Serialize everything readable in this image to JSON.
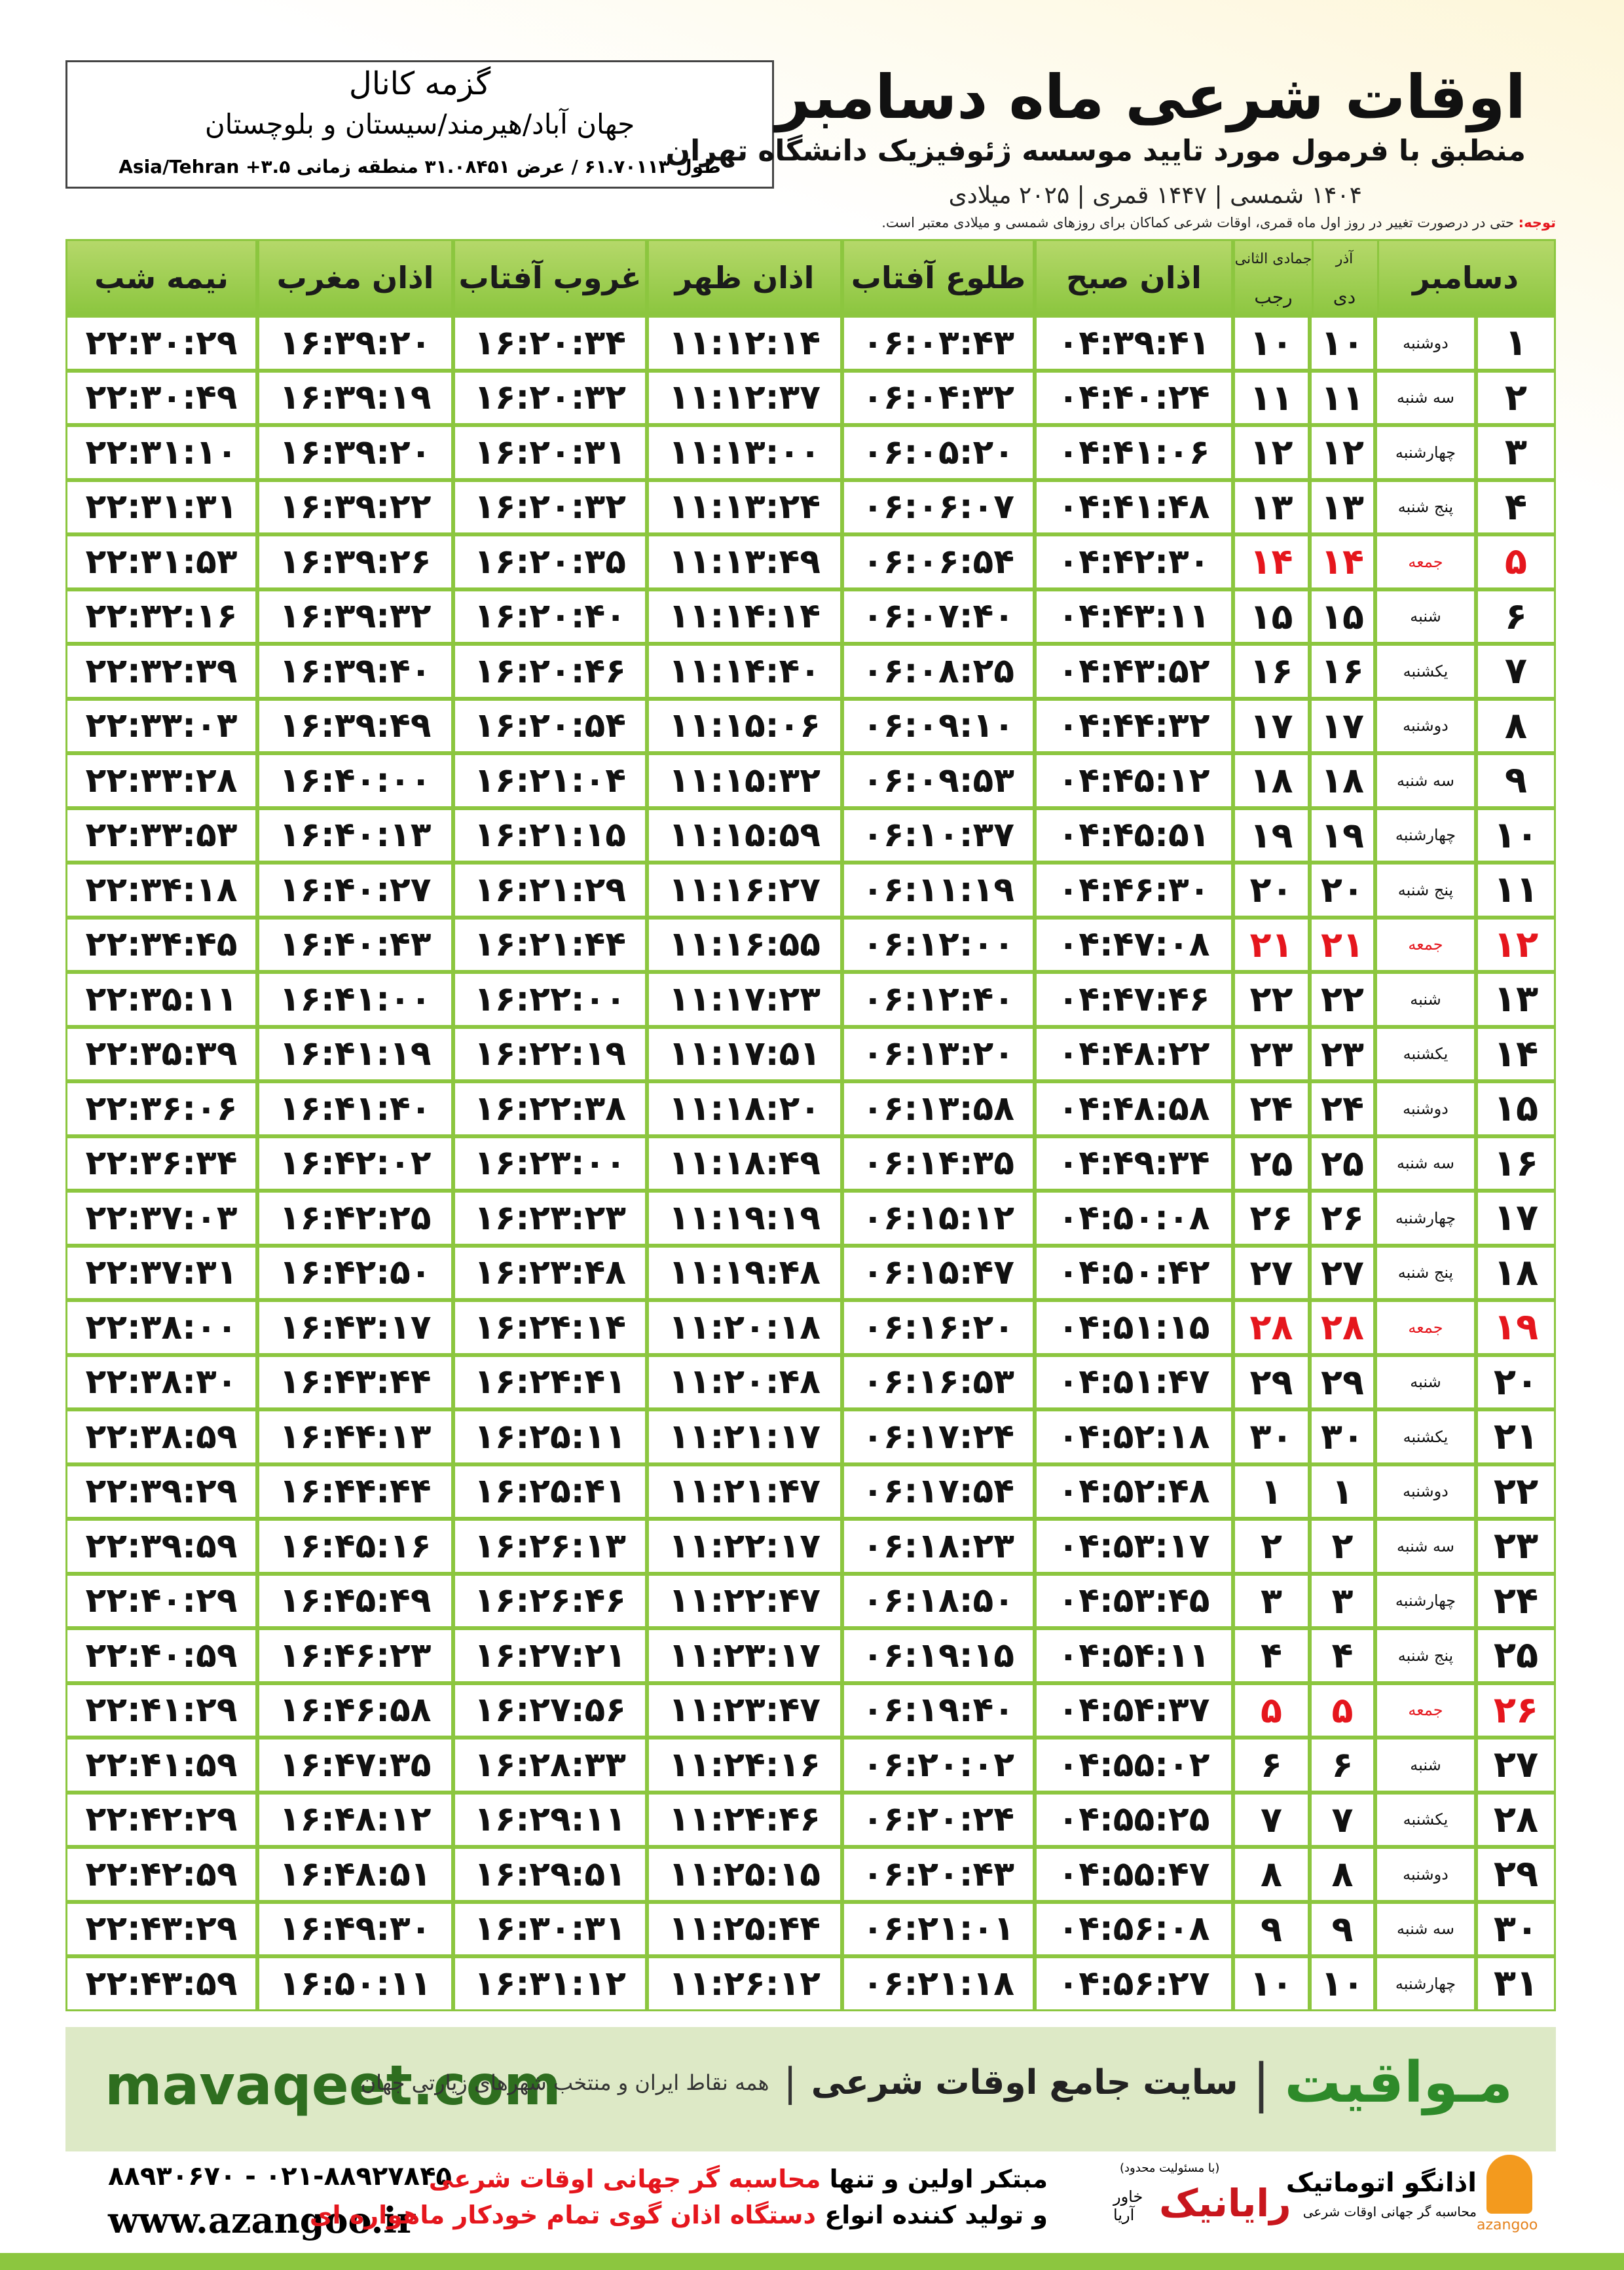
{
  "header": {
    "title": "اوقات شرعی ماه دسامبر",
    "subtitle": "منطبق با فرمول مورد تایید موسسه ژئوفیزیک دانشگاه تهران",
    "dates": "۱۴۰۴ شمسی | ۱۴۴۷ قمری | ۲۰۲۵ میلادی"
  },
  "location": {
    "name": "گزمه کانال",
    "region": "جهان آباد/هیرمند/سیستان و بلوچستان",
    "coords": "طول ۶۱.۷۰۱۱۳ / عرض ۳۱.۰۸۴۵۱ منطقه زمانی ۳.۵+ Asia/Tehran"
  },
  "note": {
    "label": "توجه:",
    "text": "حتی در درصورت تغییر در روز اول ماه قمری، اوقات شرعی کماکان برای روزهای شمسی و میلادی معتبر است."
  },
  "table": {
    "headers": {
      "month": "دسامبر",
      "solar": [
        "آذر",
        "دی"
      ],
      "lunar": [
        "جمادی الثانی",
        "رجب"
      ],
      "times": [
        "اذان صبح",
        "طلوع آفتاب",
        "اذان ظهر",
        "غروب آفتاب",
        "اذان مغرب",
        "نیمه شب"
      ]
    },
    "rows": [
      {
        "cells": [
          "۱",
          "دوشنبه",
          "۱۰",
          "۱۰",
          "۰۴:۳۹:۴۱",
          "۰۶:۰۳:۴۳",
          "۱۱:۱۲:۱۴",
          "۱۶:۲۰:۳۴",
          "۱۶:۳۹:۲۰",
          "۲۲:۳۰:۲۹"
        ]
      },
      {
        "cells": [
          "۲",
          "سه شنبه",
          "۱۱",
          "۱۱",
          "۰۴:۴۰:۲۴",
          "۰۶:۰۴:۳۲",
          "۱۱:۱۲:۳۷",
          "۱۶:۲۰:۳۲",
          "۱۶:۳۹:۱۹",
          "۲۲:۳۰:۴۹"
        ]
      },
      {
        "cells": [
          "۳",
          "چهارشنبه",
          "۱۲",
          "۱۲",
          "۰۴:۴۱:۰۶",
          "۰۶:۰۵:۲۰",
          "۱۱:۱۳:۰۰",
          "۱۶:۲۰:۳۱",
          "۱۶:۳۹:۲۰",
          "۲۲:۳۱:۱۰"
        ]
      },
      {
        "cells": [
          "۴",
          "پنج شنبه",
          "۱۳",
          "۱۳",
          "۰۴:۴۱:۴۸",
          "۰۶:۰۶:۰۷",
          "۱۱:۱۳:۲۴",
          "۱۶:۲۰:۳۲",
          "۱۶:۳۹:۲۲",
          "۲۲:۳۱:۳۱"
        ]
      },
      {
        "cells": [
          "۵",
          "جمعه",
          "۱۴",
          "۱۴",
          "۰۴:۴۲:۳۰",
          "۰۶:۰۶:۵۴",
          "۱۱:۱۳:۴۹",
          "۱۶:۲۰:۳۵",
          "۱۶:۳۹:۲۶",
          "۲۲:۳۱:۵۳"
        ],
        "color": "#e5161d"
      },
      {
        "cells": [
          "۶",
          "شنبه",
          "۱۵",
          "۱۵",
          "۰۴:۴۳:۱۱",
          "۰۶:۰۷:۴۰",
          "۱۱:۱۴:۱۴",
          "۱۶:۲۰:۴۰",
          "۱۶:۳۹:۳۲",
          "۲۲:۳۲:۱۶"
        ]
      },
      {
        "cells": [
          "۷",
          "یکشنبه",
          "۱۶",
          "۱۶",
          "۰۴:۴۳:۵۲",
          "۰۶:۰۸:۲۵",
          "۱۱:۱۴:۴۰",
          "۱۶:۲۰:۴۶",
          "۱۶:۳۹:۴۰",
          "۲۲:۳۲:۳۹"
        ]
      },
      {
        "cells": [
          "۸",
          "دوشنبه",
          "۱۷",
          "۱۷",
          "۰۴:۴۴:۳۲",
          "۰۶:۰۹:۱۰",
          "۱۱:۱۵:۰۶",
          "۱۶:۲۰:۵۴",
          "۱۶:۳۹:۴۹",
          "۲۲:۳۳:۰۳"
        ]
      },
      {
        "cells": [
          "۹",
          "سه شنبه",
          "۱۸",
          "۱۸",
          "۰۴:۴۵:۱۲",
          "۰۶:۰۹:۵۳",
          "۱۱:۱۵:۳۲",
          "۱۶:۲۱:۰۴",
          "۱۶:۴۰:۰۰",
          "۲۲:۳۳:۲۸"
        ]
      },
      {
        "cells": [
          "۱۰",
          "چهارشنبه",
          "۱۹",
          "۱۹",
          "۰۴:۴۵:۵۱",
          "۰۶:۱۰:۳۷",
          "۱۱:۱۵:۵۹",
          "۱۶:۲۱:۱۵",
          "۱۶:۴۰:۱۳",
          "۲۲:۳۳:۵۳"
        ]
      },
      {
        "cells": [
          "۱۱",
          "پنج شنبه",
          "۲۰",
          "۲۰",
          "۰۴:۴۶:۳۰",
          "۰۶:۱۱:۱۹",
          "۱۱:۱۶:۲۷",
          "۱۶:۲۱:۲۹",
          "۱۶:۴۰:۲۷",
          "۲۲:۳۴:۱۸"
        ]
      },
      {
        "cells": [
          "۱۲",
          "جمعه",
          "۲۱",
          "۲۱",
          "۰۴:۴۷:۰۸",
          "۰۶:۱۲:۰۰",
          "۱۱:۱۶:۵۵",
          "۱۶:۲۱:۴۴",
          "۱۶:۴۰:۴۳",
          "۲۲:۳۴:۴۵"
        ],
        "color": "#e5161d"
      },
      {
        "cells": [
          "۱۳",
          "شنبه",
          "۲۲",
          "۲۲",
          "۰۴:۴۷:۴۶",
          "۰۶:۱۲:۴۰",
          "۱۱:۱۷:۲۳",
          "۱۶:۲۲:۰۰",
          "۱۶:۴۱:۰۰",
          "۲۲:۳۵:۱۱"
        ]
      },
      {
        "cells": [
          "۱۴",
          "یکشنبه",
          "۲۳",
          "۲۳",
          "۰۴:۴۸:۲۲",
          "۰۶:۱۳:۲۰",
          "۱۱:۱۷:۵۱",
          "۱۶:۲۲:۱۹",
          "۱۶:۴۱:۱۹",
          "۲۲:۳۵:۳۹"
        ]
      },
      {
        "cells": [
          "۱۵",
          "دوشنبه",
          "۲۴",
          "۲۴",
          "۰۴:۴۸:۵۸",
          "۰۶:۱۳:۵۸",
          "۱۱:۱۸:۲۰",
          "۱۶:۲۲:۳۸",
          "۱۶:۴۱:۴۰",
          "۲۲:۳۶:۰۶"
        ]
      },
      {
        "cells": [
          "۱۶",
          "سه شنبه",
          "۲۵",
          "۲۵",
          "۰۴:۴۹:۳۴",
          "۰۶:۱۴:۳۵",
          "۱۱:۱۸:۴۹",
          "۱۶:۲۳:۰۰",
          "۱۶:۴۲:۰۲",
          "۲۲:۳۶:۳۴"
        ]
      },
      {
        "cells": [
          "۱۷",
          "چهارشنبه",
          "۲۶",
          "۲۶",
          "۰۴:۵۰:۰۸",
          "۰۶:۱۵:۱۲",
          "۱۱:۱۹:۱۹",
          "۱۶:۲۳:۲۳",
          "۱۶:۴۲:۲۵",
          "۲۲:۳۷:۰۳"
        ]
      },
      {
        "cells": [
          "۱۸",
          "پنج شنبه",
          "۲۷",
          "۲۷",
          "۰۴:۵۰:۴۲",
          "۰۶:۱۵:۴۷",
          "۱۱:۱۹:۴۸",
          "۱۶:۲۳:۴۸",
          "۱۶:۴۲:۵۰",
          "۲۲:۳۷:۳۱"
        ]
      },
      {
        "cells": [
          "۱۹",
          "جمعه",
          "۲۸",
          "۲۸",
          "۰۴:۵۱:۱۵",
          "۰۶:۱۶:۲۰",
          "۱۱:۲۰:۱۸",
          "۱۶:۲۴:۱۴",
          "۱۶:۴۳:۱۷",
          "۲۲:۳۸:۰۰"
        ],
        "color": "#e5161d"
      },
      {
        "cells": [
          "۲۰",
          "شنبه",
          "۲۹",
          "۲۹",
          "۰۴:۵۱:۴۷",
          "۰۶:۱۶:۵۳",
          "۱۱:۲۰:۴۸",
          "۱۶:۲۴:۴۱",
          "۱۶:۴۳:۴۴",
          "۲۲:۳۸:۳۰"
        ]
      },
      {
        "cells": [
          "۲۱",
          "یکشنبه",
          "۳۰",
          "۳۰",
          "۰۴:۵۲:۱۸",
          "۰۶:۱۷:۲۴",
          "۱۱:۲۱:۱۷",
          "۱۶:۲۵:۱۱",
          "۱۶:۴۴:۱۳",
          "۲۲:۳۸:۵۹"
        ]
      },
      {
        "cells": [
          "۲۲",
          "دوشنبه",
          "۱",
          "۱",
          "۰۴:۵۲:۴۸",
          "۰۶:۱۷:۵۴",
          "۱۱:۲۱:۴۷",
          "۱۶:۲۵:۴۱",
          "۱۶:۴۴:۴۴",
          "۲۲:۳۹:۲۹"
        ]
      },
      {
        "cells": [
          "۲۳",
          "سه شنبه",
          "۲",
          "۲",
          "۰۴:۵۳:۱۷",
          "۰۶:۱۸:۲۳",
          "۱۱:۲۲:۱۷",
          "۱۶:۲۶:۱۳",
          "۱۶:۴۵:۱۶",
          "۲۲:۳۹:۵۹"
        ]
      },
      {
        "cells": [
          "۲۴",
          "چهارشنبه",
          "۳",
          "۳",
          "۰۴:۵۳:۴۵",
          "۰۶:۱۸:۵۰",
          "۱۱:۲۲:۴۷",
          "۱۶:۲۶:۴۶",
          "۱۶:۴۵:۴۹",
          "۲۲:۴۰:۲۹"
        ]
      },
      {
        "cells": [
          "۲۵",
          "پنج شنبه",
          "۴",
          "۴",
          "۰۴:۵۴:۱۱",
          "۰۶:۱۹:۱۵",
          "۱۱:۲۳:۱۷",
          "۱۶:۲۷:۲۱",
          "۱۶:۴۶:۲۳",
          "۲۲:۴۰:۵۹"
        ]
      },
      {
        "cells": [
          "۲۶",
          "جمعه",
          "۵",
          "۵",
          "۰۴:۵۴:۳۷",
          "۰۶:۱۹:۴۰",
          "۱۱:۲۳:۴۷",
          "۱۶:۲۷:۵۶",
          "۱۶:۴۶:۵۸",
          "۲۲:۴۱:۲۹"
        ],
        "color": "#e5161d"
      },
      {
        "cells": [
          "۲۷",
          "شنبه",
          "۶",
          "۶",
          "۰۴:۵۵:۰۲",
          "۰۶:۲۰:۰۲",
          "۱۱:۲۴:۱۶",
          "۱۶:۲۸:۳۳",
          "۱۶:۴۷:۳۵",
          "۲۲:۴۱:۵۹"
        ]
      },
      {
        "cells": [
          "۲۸",
          "یکشنبه",
          "۷",
          "۷",
          "۰۴:۵۵:۲۵",
          "۰۶:۲۰:۲۴",
          "۱۱:۲۴:۴۶",
          "۱۶:۲۹:۱۱",
          "۱۶:۴۸:۱۲",
          "۲۲:۴۲:۲۹"
        ]
      },
      {
        "cells": [
          "۲۹",
          "دوشنبه",
          "۸",
          "۸",
          "۰۴:۵۵:۴۷",
          "۰۶:۲۰:۴۳",
          "۱۱:۲۵:۱۵",
          "۱۶:۲۹:۵۱",
          "۱۶:۴۸:۵۱",
          "۲۲:۴۲:۵۹"
        ]
      },
      {
        "cells": [
          "۳۰",
          "سه شنبه",
          "۹",
          "۹",
          "۰۴:۵۶:۰۸",
          "۰۶:۲۱:۰۱",
          "۱۱:۲۵:۴۴",
          "۱۶:۳۰:۳۱",
          "۱۶:۴۹:۳۰",
          "۲۲:۴۳:۲۹"
        ]
      },
      {
        "cells": [
          "۳۱",
          "چهارشنبه",
          "۱۰",
          "۱۰",
          "۰۴:۵۶:۲۷",
          "۰۶:۲۱:۱۸",
          "۱۱:۲۶:۱۲",
          "۱۶:۳۱:۱۲",
          "۱۶:۵۰:۱۱",
          "۲۲:۴۳:۵۹"
        ]
      }
    ]
  },
  "footer": {
    "site": "mavaqeet.com",
    "brand": "مـواقیت",
    "slogan": "سایت جامع اوقات شرعی",
    "tagline": "همه نقاط ایران و منتخب شهرهای زیارتی جهان"
  },
  "contact": {
    "phones": "۰۲۱-۸۸۹۲۷۸۴۵ - ۸۸۹۳۰۶۷۰",
    "web": "www.azangoo.ir",
    "line1": [
      "مبتکر اولین و تنها",
      "محاسبه گر جهانی اوقات شرعی"
    ],
    "line2": [
      "و تولید کننده انواع",
      "دستگاه اذان گوی تمام خودکار ماهواره ای"
    ],
    "logo1": "رایانیک",
    "logo1_sub": "خاور آریا",
    "logo1_note": "(با مسئولیت محدود)",
    "logo2": "اذانگو اتوماتیک",
    "logo2_sub": "محاسبه گر جهانی اوقات شرعی",
    "logo2_tag": "azangoo"
  }
}
